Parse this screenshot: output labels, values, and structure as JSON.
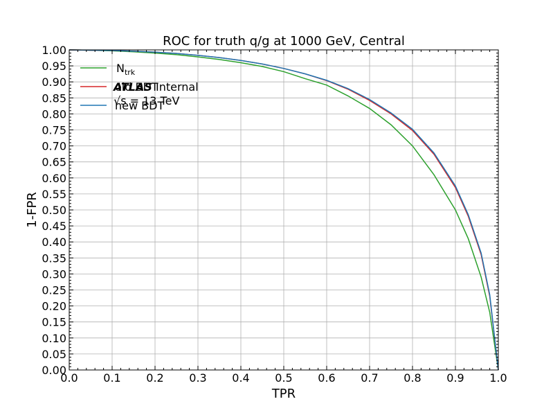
{
  "chart_data": {
    "type": "line",
    "title": "ROC for truth q/g at 1000 GeV, Central",
    "xlabel": "TPR",
    "ylabel": "1-FPR",
    "xlim": [
      0.0,
      1.0
    ],
    "ylim": [
      0.0,
      1.0
    ],
    "x_ticks": [
      0.0,
      0.1,
      0.2,
      0.3,
      0.4,
      0.5,
      0.6,
      0.7,
      0.8,
      0.9,
      1.0
    ],
    "x_tick_labels": [
      "0.0",
      "0.1",
      "0.2",
      "0.3",
      "0.4",
      "0.5",
      "0.6",
      "0.7",
      "0.8",
      "0.9",
      "1.0"
    ],
    "y_ticks": [
      0.0,
      0.05,
      0.1,
      0.15,
      0.2,
      0.25,
      0.3,
      0.35,
      0.4,
      0.45,
      0.5,
      0.55,
      0.6,
      0.65,
      0.7,
      0.75,
      0.8,
      0.85,
      0.9,
      0.95,
      1.0
    ],
    "y_tick_labels": [
      "0.00",
      "0.05",
      "0.10",
      "0.15",
      "0.20",
      "0.25",
      "0.30",
      "0.35",
      "0.40",
      "0.45",
      "0.50",
      "0.55",
      "0.60",
      "0.65",
      "0.70",
      "0.75",
      "0.80",
      "0.85",
      "0.90",
      "0.95",
      "1.00"
    ],
    "grid": true,
    "legend_position": "top-left",
    "series": [
      {
        "name": "N",
        "name_subscript": "trk",
        "color": "#2ca02c",
        "x": [
          0.0,
          0.05,
          0.1,
          0.15,
          0.2,
          0.25,
          0.3,
          0.35,
          0.4,
          0.45,
          0.5,
          0.55,
          0.6,
          0.65,
          0.7,
          0.75,
          0.8,
          0.85,
          0.9,
          0.93,
          0.96,
          0.98,
          1.0
        ],
        "y": [
          1.0,
          0.999,
          0.997,
          0.994,
          0.99,
          0.985,
          0.978,
          0.97,
          0.96,
          0.948,
          0.932,
          0.91,
          0.89,
          0.856,
          0.817,
          0.766,
          0.7,
          0.61,
          0.5,
          0.41,
          0.29,
          0.18,
          0.0
        ]
      },
      {
        "name": "old BDT",
        "color": "#d62728",
        "x": [
          0.0,
          0.05,
          0.1,
          0.15,
          0.2,
          0.25,
          0.3,
          0.35,
          0.4,
          0.45,
          0.5,
          0.55,
          0.6,
          0.65,
          0.7,
          0.75,
          0.8,
          0.85,
          0.9,
          0.93,
          0.96,
          0.98,
          1.0
        ],
        "y": [
          1.0,
          0.999,
          0.998,
          0.996,
          0.993,
          0.989,
          0.983,
          0.976,
          0.967,
          0.956,
          0.942,
          0.925,
          0.904,
          0.877,
          0.842,
          0.8,
          0.748,
          0.674,
          0.57,
          0.48,
          0.36,
          0.23,
          0.0
        ]
      },
      {
        "name": "new BDT",
        "color": "#1f77b4",
        "x": [
          0.0,
          0.05,
          0.1,
          0.15,
          0.2,
          0.25,
          0.3,
          0.35,
          0.4,
          0.45,
          0.5,
          0.55,
          0.6,
          0.65,
          0.7,
          0.75,
          0.8,
          0.85,
          0.9,
          0.93,
          0.96,
          0.98,
          1.0
        ],
        "y": [
          1.0,
          0.999,
          0.998,
          0.996,
          0.993,
          0.989,
          0.983,
          0.976,
          0.967,
          0.956,
          0.942,
          0.925,
          0.905,
          0.879,
          0.845,
          0.803,
          0.752,
          0.678,
          0.575,
          0.485,
          0.365,
          0.235,
          0.0
        ]
      }
    ],
    "annotations": [
      {
        "bold_text": "ATLAS",
        "text": "Internal"
      },
      {
        "text": "√s = 13 TeV"
      }
    ]
  }
}
